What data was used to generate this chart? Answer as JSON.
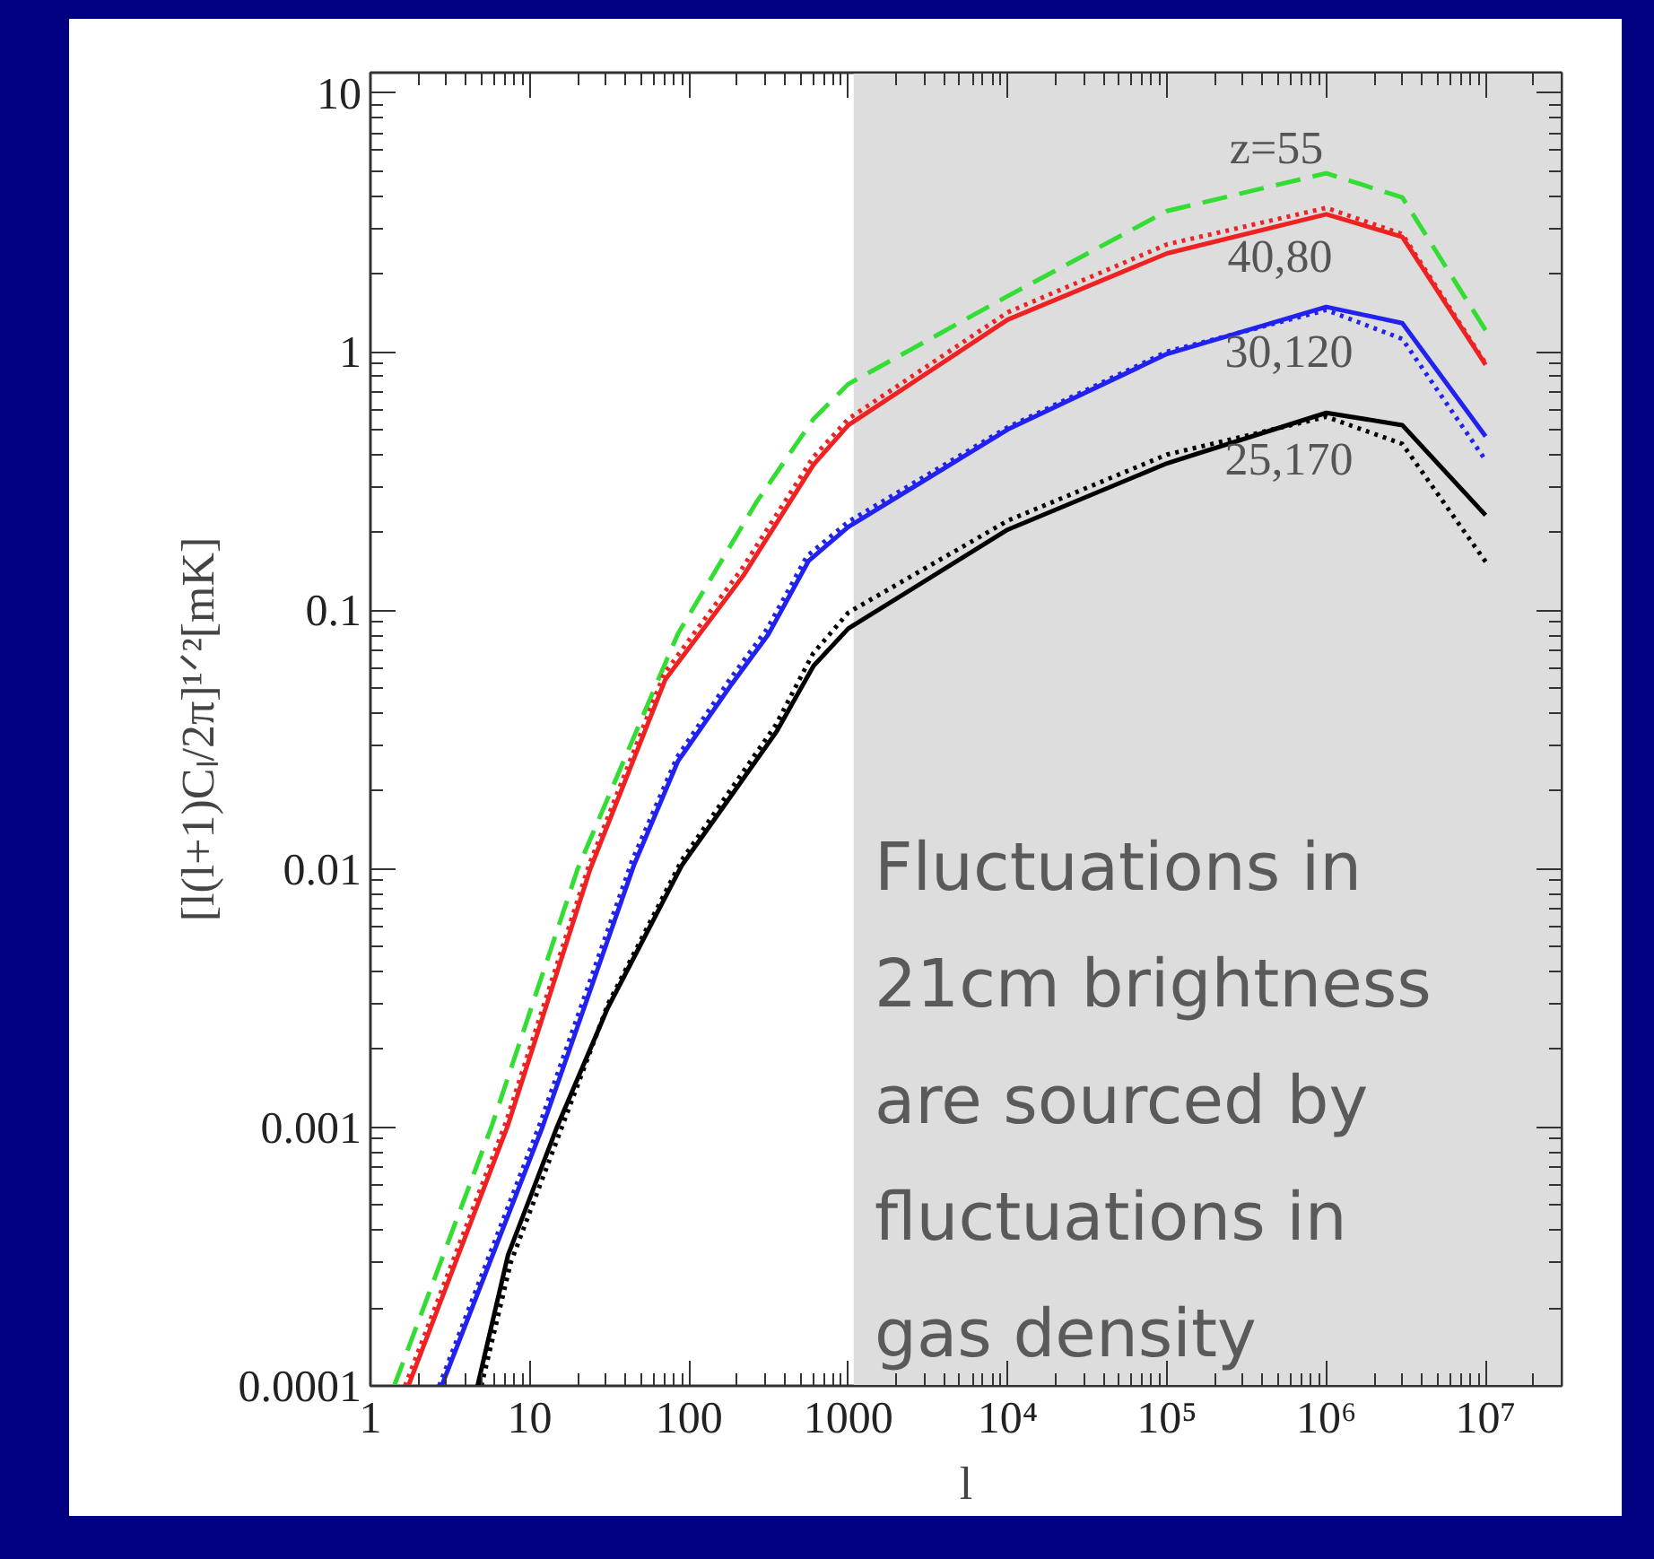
{
  "chart_data": {
    "type": "line",
    "xlabel": "l",
    "ylabel": "[l(l+1)Cₗ/2π]¹ᐟ²[mK]",
    "log": "xy",
    "xlim": [
      1,
      30000000
    ],
    "ylim": [
      0.0001,
      12
    ],
    "xticks": [
      1,
      10,
      100,
      1000,
      {
        "value": 10000,
        "label": "10⁴"
      },
      {
        "value": 100000,
        "label": "10⁵"
      },
      {
        "value": 1000000,
        "label": "10⁶"
      },
      {
        "value": 10000000,
        "label": "10⁷"
      }
    ],
    "yticks": [
      0.0001,
      0.001,
      0.01,
      0.1,
      1,
      10
    ],
    "grid": false,
    "series": [
      {
        "color": "#33dd33",
        "line_style": "dashed",
        "x": [
          1.41,
          5.8,
          20,
          85,
          263,
          605,
          1000,
          10000,
          100000,
          1000000,
          3000000,
          10000000
        ],
        "values": [
          0.0001,
          0.00102,
          0.01,
          0.081,
          0.26,
          0.55,
          0.75,
          1.64,
          3.5,
          4.9,
          3.95,
          1.21
        ]
      },
      {
        "color": "#ee2222",
        "line_style": "solid",
        "x": [
          1.73,
          7.3,
          24,
          71,
          219,
          605,
          1000,
          10000,
          100000,
          1000000,
          3000000,
          10000000
        ],
        "values": [
          0.0001,
          0.00102,
          0.01,
          0.054,
          0.136,
          0.366,
          0.52,
          1.33,
          2.4,
          3.4,
          2.78,
          0.89
        ]
      },
      {
        "color": "#ee2222",
        "line_style": "dotted",
        "x": [
          1.65,
          7.1,
          23.5,
          70,
          215,
          600,
          1000,
          10000,
          100000,
          1000000,
          3000000,
          10000000
        ],
        "values": [
          0.0001,
          0.00105,
          0.0103,
          0.057,
          0.145,
          0.39,
          0.55,
          1.42,
          2.6,
          3.6,
          2.85,
          0.9
        ]
      },
      {
        "color": "#2222ee",
        "line_style": "solid",
        "x": [
          2.8,
          12,
          45,
          85,
          182,
          316,
          562,
          1000,
          10000,
          100000,
          1000000,
          3000000,
          10000000
        ],
        "values": [
          0.0001,
          0.001,
          0.0103,
          0.026,
          0.051,
          0.081,
          0.155,
          0.21,
          0.5,
          0.98,
          1.49,
          1.29,
          0.47
        ]
      },
      {
        "color": "#2222ee",
        "line_style": "dotted",
        "x": [
          2.7,
          11.7,
          44,
          84,
          180,
          310,
          550,
          1000,
          10000,
          100000,
          1000000,
          3000000,
          10000000
        ],
        "values": [
          0.0001,
          0.00105,
          0.0108,
          0.027,
          0.054,
          0.085,
          0.162,
          0.22,
          0.51,
          1.0,
          1.45,
          1.12,
          0.38
        ]
      },
      {
        "color": "#000000",
        "line_style": "solid",
        "x": [
          4.7,
          7.3,
          14.8,
          30.9,
          90,
          182,
          355,
          605,
          1000,
          10000,
          100000,
          1000000,
          3000000,
          10000000
        ],
        "values": [
          0.0001,
          0.00032,
          0.001,
          0.0029,
          0.0103,
          0.019,
          0.034,
          0.061,
          0.085,
          0.205,
          0.37,
          0.58,
          0.52,
          0.233
        ]
      },
      {
        "color": "#000000",
        "line_style": "dotted",
        "x": [
          4.97,
          7.6,
          15.9,
          31,
          90,
          180,
          350,
          600,
          1000,
          10000,
          100000,
          1000000,
          3000000,
          10000000
        ],
        "values": [
          0.0001,
          0.0003,
          0.001,
          0.003,
          0.0108,
          0.02,
          0.036,
          0.068,
          0.098,
          0.222,
          0.4,
          0.56,
          0.44,
          0.154
        ]
      }
    ],
    "bands": [
      {
        "axis": "x",
        "from": 1080,
        "to": 30000000,
        "color": "#dddddd"
      }
    ],
    "annotations": [
      "z=55",
      "40,80",
      "30,120",
      "25,170",
      "Fluctuations in\n21cm brightness\nare sourced by\nfluctuations in\ngas density"
    ]
  }
}
